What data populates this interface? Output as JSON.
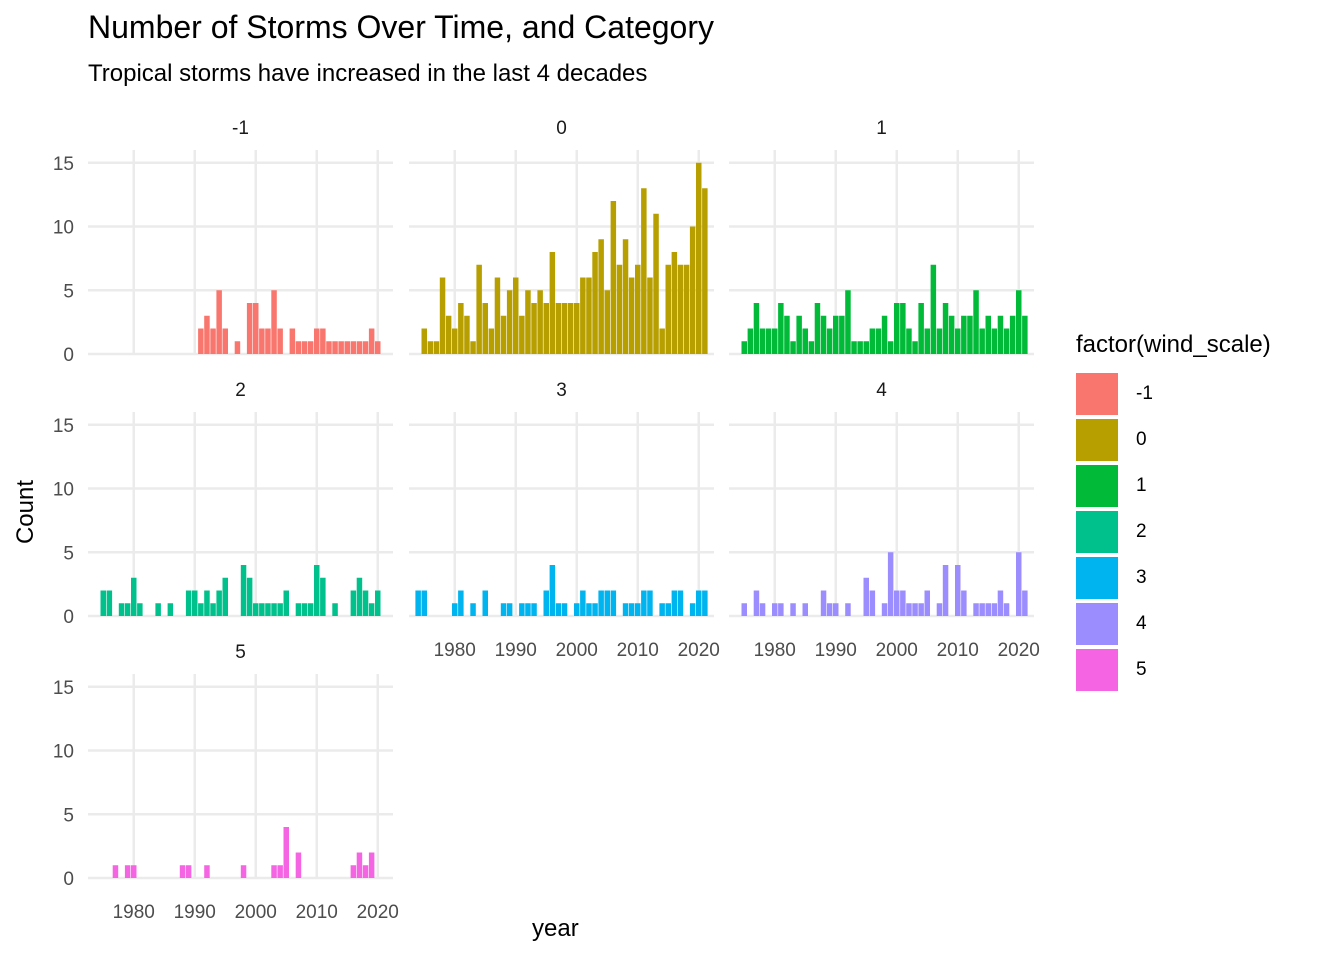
{
  "chart_data": {
    "type": "bar",
    "title": "Number of Storms Over Time, and Category",
    "subtitle": "Tropical storms have increased in the last 4 decades",
    "xlabel": "year",
    "ylabel": "Count",
    "ylim": [
      0,
      16
    ],
    "yticks": [
      0,
      5,
      10,
      15
    ],
    "xlim": [
      1972.5,
      2022.5
    ],
    "xticks": [
      1980,
      1990,
      2000,
      2010,
      2020
    ],
    "grid": true,
    "legend": {
      "title": "factor(wind_scale)",
      "position": "right"
    },
    "facets": [
      {
        "label": "-1",
        "color": "#F8766D",
        "x": [
          1991,
          1992,
          1993,
          1994,
          1995,
          1997,
          1999,
          2000,
          2001,
          2002,
          2003,
          2004,
          2006,
          2007,
          2008,
          2009,
          2010,
          2011,
          2012,
          2013,
          2014,
          2015,
          2016,
          2017,
          2018,
          2019,
          2020
        ],
        "values": [
          2,
          3,
          2,
          5,
          2,
          1,
          4,
          4,
          2,
          2,
          5,
          2,
          2,
          1,
          1,
          1,
          2,
          2,
          1,
          1,
          1,
          1,
          1,
          1,
          1,
          2,
          1
        ]
      },
      {
        "label": "0",
        "color": "#B79F00",
        "x": [
          1975,
          1976,
          1977,
          1978,
          1979,
          1980,
          1981,
          1982,
          1983,
          1984,
          1985,
          1986,
          1987,
          1988,
          1989,
          1990,
          1991,
          1992,
          1993,
          1994,
          1995,
          1996,
          1997,
          1998,
          1999,
          2000,
          2001,
          2002,
          2003,
          2004,
          2005,
          2006,
          2007,
          2008,
          2009,
          2010,
          2011,
          2012,
          2013,
          2014,
          2015,
          2016,
          2017,
          2018,
          2019,
          2020,
          2021
        ],
        "values": [
          2,
          1,
          1,
          6,
          3,
          2,
          4,
          3,
          1,
          7,
          4,
          2,
          6,
          3,
          5,
          6,
          3,
          5,
          4,
          5,
          4,
          8,
          4,
          4,
          4,
          4,
          6,
          6,
          8,
          9,
          5,
          12,
          7,
          9,
          6,
          7,
          13,
          6,
          11,
          2,
          7,
          8,
          7,
          7,
          10,
          15,
          13
        ]
      },
      {
        "label": "1",
        "color": "#00BA38",
        "x": [
          1975,
          1976,
          1977,
          1978,
          1979,
          1980,
          1981,
          1982,
          1983,
          1984,
          1985,
          1986,
          1987,
          1988,
          1989,
          1990,
          1991,
          1992,
          1993,
          1994,
          1995,
          1996,
          1997,
          1998,
          1999,
          2000,
          2001,
          2002,
          2003,
          2004,
          2005,
          2006,
          2007,
          2008,
          2009,
          2010,
          2011,
          2012,
          2013,
          2014,
          2015,
          2016,
          2017,
          2018,
          2019,
          2020,
          2021
        ],
        "values": [
          1,
          2,
          4,
          2,
          2,
          2,
          4,
          3,
          1,
          3,
          2,
          1,
          4,
          3,
          2,
          3,
          3,
          5,
          1,
          1,
          1,
          2,
          2,
          3,
          1,
          4,
          4,
          2,
          1,
          4,
          2,
          7,
          2,
          4,
          3,
          2,
          3,
          3,
          5,
          2,
          3,
          2,
          3,
          2,
          3,
          5,
          3
        ]
      },
      {
        "label": "2",
        "color": "#00C08B",
        "x": [
          1975,
          1976,
          1978,
          1979,
          1980,
          1981,
          1984,
          1986,
          1989,
          1990,
          1991,
          1992,
          1993,
          1994,
          1995,
          1998,
          1999,
          2000,
          2001,
          2002,
          2003,
          2004,
          2005,
          2007,
          2008,
          2009,
          2010,
          2011,
          2013,
          2016,
          2017,
          2018,
          2019,
          2020
        ],
        "values": [
          2,
          2,
          1,
          1,
          3,
          1,
          1,
          1,
          2,
          2,
          1,
          2,
          1,
          2,
          3,
          4,
          3,
          1,
          1,
          1,
          1,
          1,
          2,
          1,
          1,
          1,
          4,
          3,
          1,
          2,
          3,
          2,
          1,
          2
        ]
      },
      {
        "label": "3",
        "color": "#00B4EF",
        "x": [
          1974,
          1975,
          1980,
          1981,
          1983,
          1985,
          1988,
          1989,
          1991,
          1992,
          1993,
          1995,
          1996,
          1997,
          1998,
          2000,
          2001,
          2002,
          2003,
          2004,
          2005,
          2006,
          2008,
          2009,
          2010,
          2011,
          2012,
          2014,
          2015,
          2016,
          2017,
          2019,
          2020,
          2021
        ],
        "values": [
          2,
          2,
          1,
          2,
          1,
          2,
          1,
          1,
          1,
          1,
          1,
          2,
          4,
          1,
          1,
          1,
          2,
          1,
          1,
          2,
          2,
          2,
          1,
          1,
          1,
          2,
          2,
          1,
          1,
          2,
          2,
          1,
          2,
          2
        ]
      },
      {
        "label": "4",
        "color": "#9C8DFF",
        "x": [
          1975,
          1977,
          1978,
          1980,
          1981,
          1983,
          1985,
          1988,
          1989,
          1990,
          1992,
          1995,
          1996,
          1998,
          1999,
          2000,
          2001,
          2002,
          2003,
          2004,
          2005,
          2007,
          2008,
          2010,
          2011,
          2013,
          2014,
          2015,
          2016,
          2017,
          2018,
          2020,
          2021
        ],
        "values": [
          1,
          2,
          1,
          1,
          1,
          1,
          1,
          2,
          1,
          1,
          1,
          3,
          2,
          1,
          5,
          2,
          2,
          1,
          1,
          1,
          2,
          1,
          4,
          4,
          2,
          1,
          1,
          1,
          1,
          2,
          1,
          5,
          2
        ]
      },
      {
        "label": "5",
        "color": "#F564E3",
        "x": [
          1977,
          1979,
          1980,
          1988,
          1989,
          1992,
          1998,
          2003,
          2004,
          2005,
          2007,
          2016,
          2017,
          2018,
          2019
        ],
        "values": [
          1,
          1,
          1,
          1,
          1,
          1,
          1,
          1,
          1,
          4,
          2,
          1,
          2,
          1,
          2
        ]
      }
    ]
  }
}
